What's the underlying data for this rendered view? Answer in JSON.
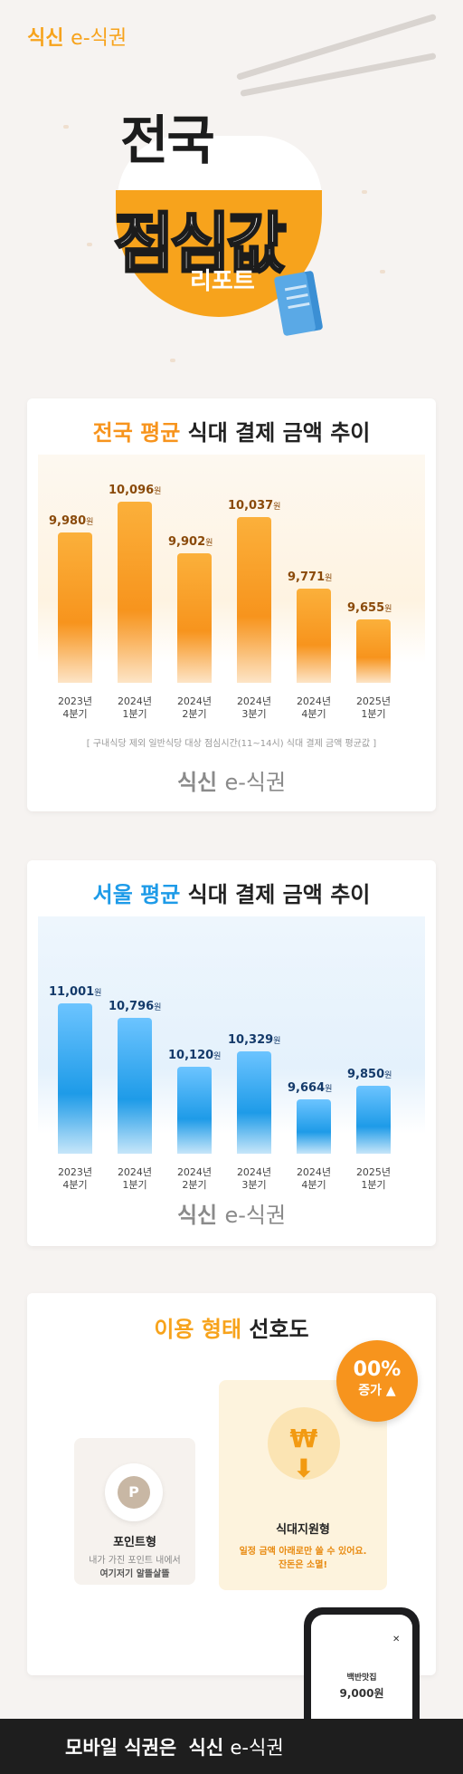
{
  "brand": {
    "logo_a": "식신",
    "logo_b": "e-식권"
  },
  "hero": {
    "title_line1": "전국",
    "title_line2": "점심값",
    "title_line3": "리포트"
  },
  "card1": {
    "title_accent": "전국 평균",
    "title_rest": "식대 결제 금액 추이",
    "note": "[ 구내식당 제외 일반식당 대상 점심시간(11~14시) 식대 결제 금액 평균값 ]",
    "accent_color": "#f7941d"
  },
  "card2": {
    "title_accent": "서울 평균",
    "title_rest": "식대 결제 금액 추이",
    "accent_color": "#1e9be8"
  },
  "chart_data": [
    {
      "type": "bar",
      "title": "전국 평균 식대 결제 금액 추이",
      "categories": [
        "2023년 4분기",
        "2024년 1분기",
        "2024년 2분기",
        "2024년 3분기",
        "2024년 4분기",
        "2025년 1분기"
      ],
      "values": [
        9980,
        10096,
        9902,
        10037,
        9771,
        9655
      ],
      "value_labels": [
        "9,980",
        "10,096",
        "9,902",
        "10,037",
        "9,771",
        "9,655"
      ],
      "unit": "원",
      "color": "#f7941d"
    },
    {
      "type": "bar",
      "title": "서울 평균 식대 결제 금액 추이",
      "categories": [
        "2023년 4분기",
        "2024년 1분기",
        "2024년 2분기",
        "2024년 3분기",
        "2024년 4분기",
        "2025년 1분기"
      ],
      "values": [
        11001,
        10796,
        10120,
        10329,
        9664,
        9850
      ],
      "value_labels": [
        "11,001",
        "10,796",
        "10,120",
        "10,329",
        "9,664",
        "9,850"
      ],
      "unit": "원",
      "color": "#1e9be8"
    }
  ],
  "card3": {
    "title_accent": "이용 형태",
    "title_rest": "선호도",
    "badge_top": "00%",
    "badge_bottom": "증가",
    "option1": {
      "label": "포인트형",
      "desc1": "내가 가진 포인트 내에서",
      "desc2": "여기저기 알뜰살뜰",
      "icon_letter": "P"
    },
    "option2": {
      "label": "식대지원형",
      "desc1": "일정 금액 아래로만 쓸 수 있어요.",
      "desc2": "잔돈은 소멸!"
    }
  },
  "phone": {
    "store": "백반맛집",
    "amount": "9,000원"
  },
  "footer": {
    "text": "모바일 식권은"
  }
}
